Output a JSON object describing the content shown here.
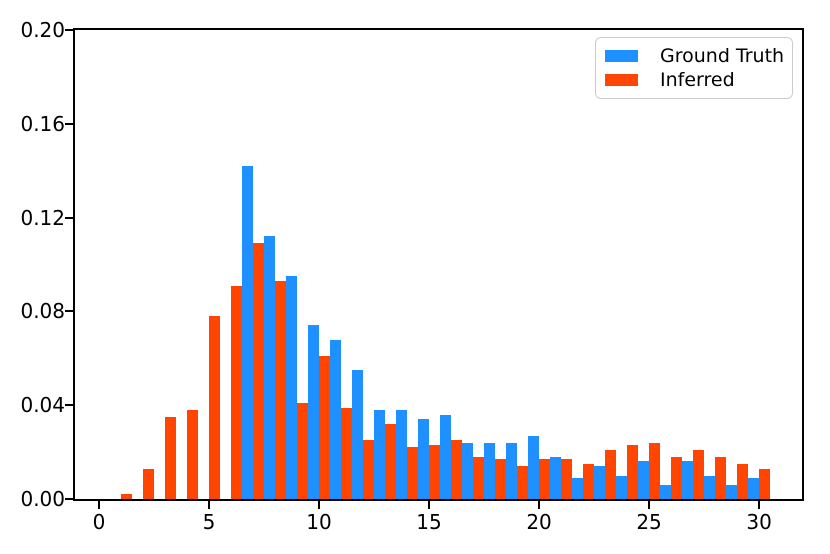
{
  "chart_data": {
    "type": "bar",
    "categories": [
      0,
      1,
      2,
      3,
      4,
      5,
      6,
      7,
      8,
      9,
      10,
      11,
      12,
      13,
      14,
      15,
      16,
      17,
      18,
      19,
      20,
      21,
      22,
      23,
      24,
      25,
      26,
      27,
      28,
      29,
      30
    ],
    "series": [
      {
        "name": "Ground Truth",
        "color": "#1E90FF",
        "values": [
          0,
          0,
          0,
          0,
          0,
          0,
          0,
          0.142,
          0.112,
          0.095,
          0.074,
          0.068,
          0.055,
          0.038,
          0.038,
          0.034,
          0.036,
          0.024,
          0.024,
          0.024,
          0.027,
          0.018,
          0.009,
          0.014,
          0.01,
          0.016,
          0.006,
          0.016,
          0.01,
          0.006,
          0.009
        ]
      },
      {
        "name": "Inferred",
        "color": "#FF4500",
        "values": [
          0,
          0.002,
          0.013,
          0.035,
          0.038,
          0.078,
          0.091,
          0.109,
          0.093,
          0.041,
          0.061,
          0.039,
          0.025,
          0.032,
          0.022,
          0.023,
          0.025,
          0.018,
          0.017,
          0.014,
          0.017,
          0.017,
          0.015,
          0.021,
          0.023,
          0.024,
          0.018,
          0.021,
          0.018,
          0.015,
          0.013
        ]
      }
    ],
    "bar_width": 0.5,
    "group_offsets": [
      -0.25,
      0.25
    ],
    "xlim": [
      -1.09,
      31.95
    ],
    "ylim": [
      0,
      0.2
    ],
    "x_ticks": [
      0,
      5,
      10,
      15,
      20,
      25,
      30
    ],
    "x_tick_labels": [
      "0",
      "5",
      "10",
      "15",
      "20",
      "25",
      "30"
    ],
    "y_ticks": [
      0,
      0.04,
      0.08,
      0.12,
      0.16,
      0.2
    ],
    "y_tick_labels": [
      "0.00",
      "0.04",
      "0.08",
      "0.12",
      "0.16",
      "0.20"
    ],
    "grid": false,
    "legend_position": "upper right",
    "xlabel": "",
    "ylabel": ""
  }
}
